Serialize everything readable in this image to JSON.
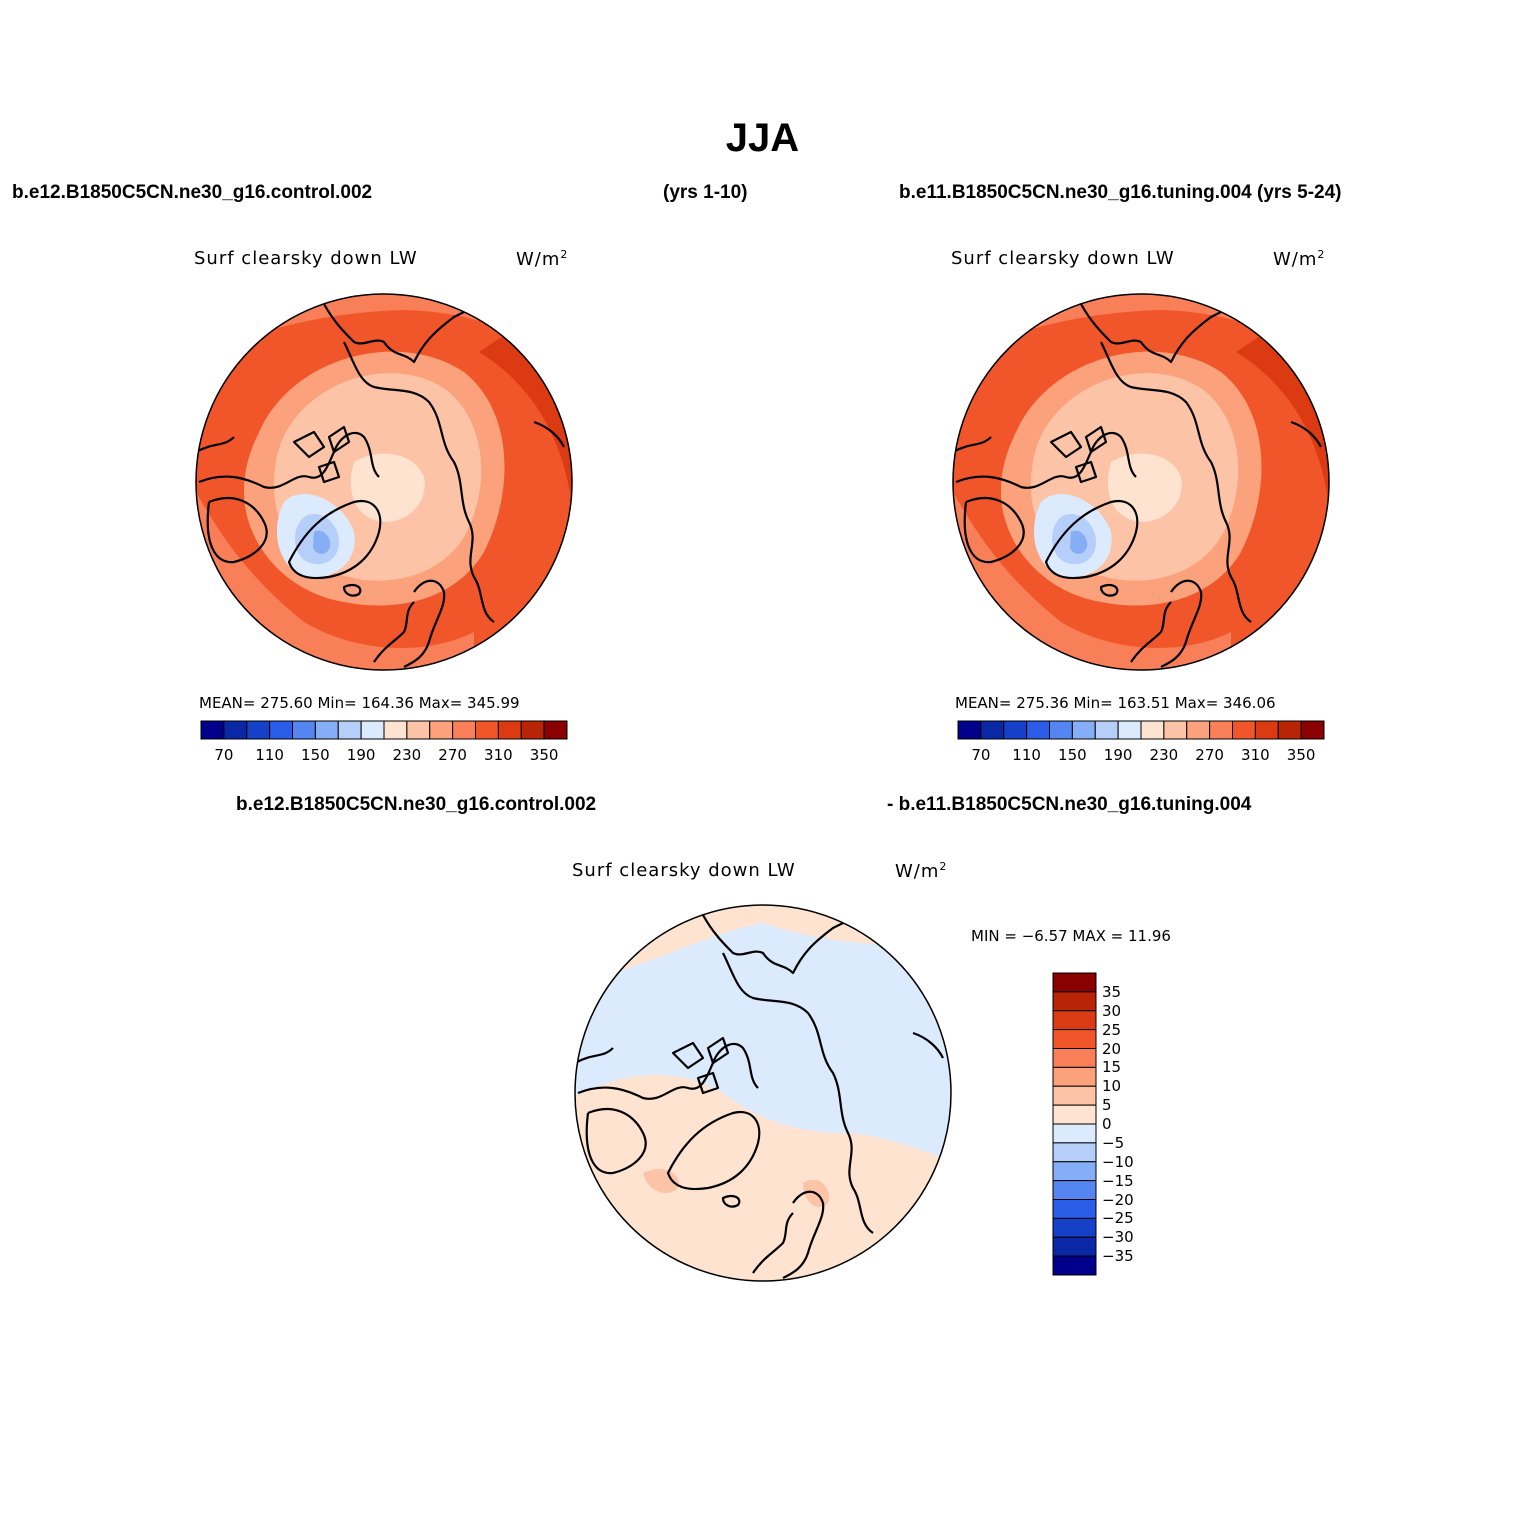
{
  "main_title": "JJA",
  "header": {
    "left_case": "b.e12.B1850C5CN.ne30_g16.control.002",
    "left_years": "(yrs 1-10)",
    "right_case": "b.e11.B1850C5CN.ne30_g16.tuning.004 (yrs 5-24)",
    "diff_case_a": "b.e12.B1850C5CN.ne30_g16.control.002",
    "diff_case_b": "- b.e11.B1850C5CN.ne30_g16.tuning.004"
  },
  "panels": {
    "left": {
      "variable": "Surf clearsky down LW",
      "units_base": "W/m",
      "units_exp": "2",
      "stats": "MEAN= 275.60   Min= 164.36   Max= 345.99"
    },
    "right": {
      "variable": "Surf clearsky down LW",
      "units_base": "W/m",
      "units_exp": "2",
      "stats": "MEAN= 275.36   Min= 163.51   Max= 346.06"
    },
    "diff": {
      "variable": "Surf clearsky down LW",
      "units_base": "W/m",
      "units_exp": "2",
      "stats": "MIN =   −6.57 MAX =   11.96"
    }
  },
  "colorbar_abs": {
    "colors": [
      "#00008b",
      "#0a28a6",
      "#1441c8",
      "#2a5ee8",
      "#5585f0",
      "#86aef6",
      "#b6cffa",
      "#dceafd",
      "#fde3d0",
      "#fcc3a6",
      "#fba27c",
      "#f87f58",
      "#f1562a",
      "#dc3a12",
      "#b82506",
      "#8b0000"
    ],
    "tick_labels": [
      "70",
      "110",
      "150",
      "190",
      "230",
      "270",
      "310",
      "350"
    ]
  },
  "colorbar_diff": {
    "colors_top_to_bottom": [
      "#8b0000",
      "#b82506",
      "#dc3a12",
      "#f1562a",
      "#f87f58",
      "#fba27c",
      "#fcc3a6",
      "#fde3d0",
      "#dceafd",
      "#b6cffa",
      "#86aef6",
      "#5585f0",
      "#2a5ee8",
      "#1441c8",
      "#0a28a6",
      "#00008b"
    ],
    "tick_labels_top_to_bottom": [
      "35",
      "30",
      "25",
      "20",
      "15",
      "10",
      "5",
      "0",
      "−5",
      "−10",
      "−15",
      "−20",
      "−25",
      "−30",
      "−35"
    ]
  },
  "map_colors": {
    "abs_level_310": "#f1562a",
    "abs_level_270": "#f87f58",
    "abs_level_250": "#fba27c",
    "abs_level_230": "#fcc3a6",
    "abs_level_210": "#fde3d0",
    "abs_level_350": "#dc3a12",
    "abs_level_190": "#dceafd",
    "abs_level_150": "#b6cffa",
    "abs_level_110": "#86aef6",
    "diff_pos": "#fde3d0",
    "diff_neg": "#dceafd",
    "diff_pos2": "#fcc3a6",
    "coastline": "#000000"
  }
}
